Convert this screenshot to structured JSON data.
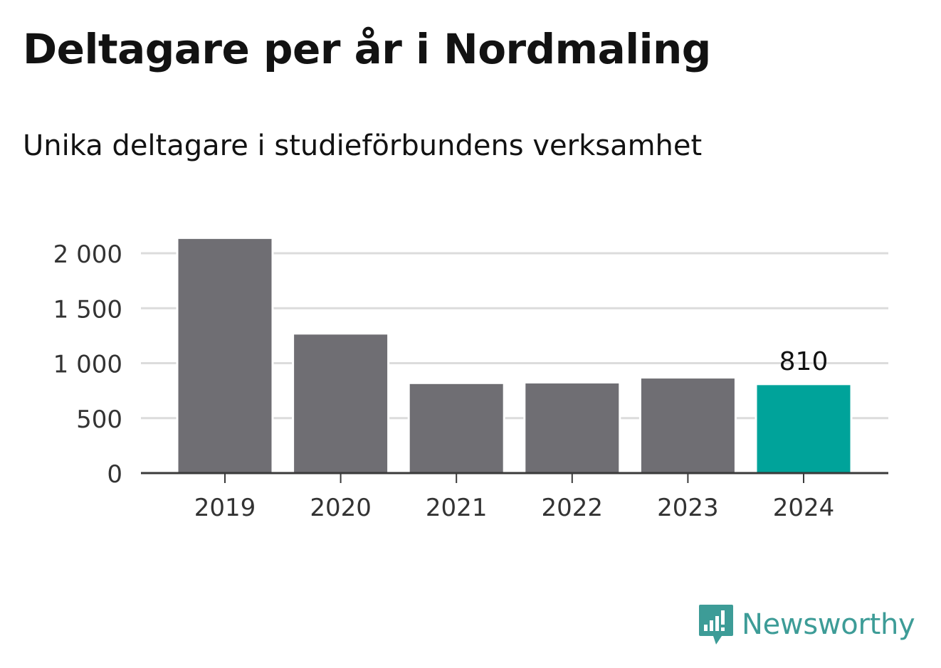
{
  "title": "Deltagare per år i Nordmaling",
  "subtitle": "Unika deltagare i studieförbundens verksamhet",
  "brand": {
    "name": "Newsworthy",
    "color": "#3d9c97",
    "icon": "bar-chart-speech-bubble-icon"
  },
  "colors": {
    "bar": "#6f6e73",
    "highlight": "#00a39a",
    "grid": "#dcdcdc",
    "axis": "#3a3a3a",
    "text": "#121212"
  },
  "chart_data": {
    "type": "bar",
    "categories": [
      "2019",
      "2020",
      "2021",
      "2022",
      "2023",
      "2024"
    ],
    "values": [
      2140,
      1270,
      820,
      825,
      870,
      810
    ],
    "highlight_index": 5,
    "data_labels": [
      {
        "index": 5,
        "text": "810"
      }
    ],
    "ylim": [
      0,
      2000
    ],
    "yticks": [
      0,
      500,
      1000,
      1500,
      2000
    ],
    "ytick_labels": [
      "0",
      "500",
      "1 000",
      "1 500",
      "2 000"
    ],
    "grid": true,
    "legend": "none",
    "xlabel": "",
    "ylabel": ""
  }
}
